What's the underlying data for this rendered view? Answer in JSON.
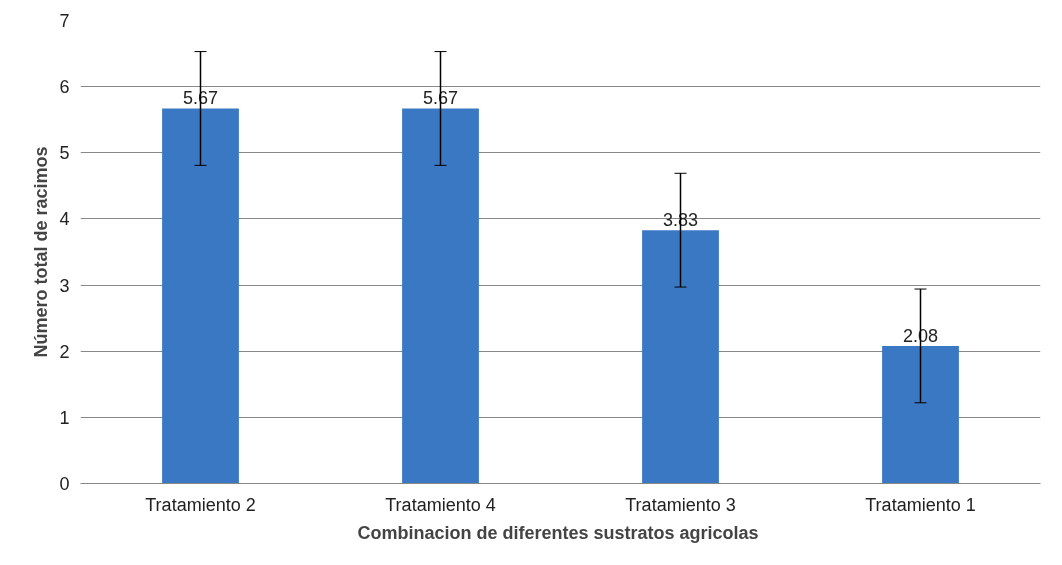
{
  "chart_data": {
    "type": "bar",
    "xlabel": "Combinacion de diferentes sustratos  agricolas",
    "ylabel": "Número total de racimos",
    "categories": [
      "Tratamiento 2",
      "Tratamiento 4",
      "Tratamiento 3",
      "Tratamiento 1"
    ],
    "values": [
      5.67,
      5.67,
      3.83,
      2.08
    ],
    "errors": [
      0.86,
      0.86,
      0.86,
      0.86
    ],
    "color": "#3b78c4",
    "ylim": [
      0,
      7
    ],
    "yticks": [
      0,
      1,
      2,
      3,
      4,
      5,
      6,
      7
    ],
    "grid": "y",
    "data_labels": true
  }
}
